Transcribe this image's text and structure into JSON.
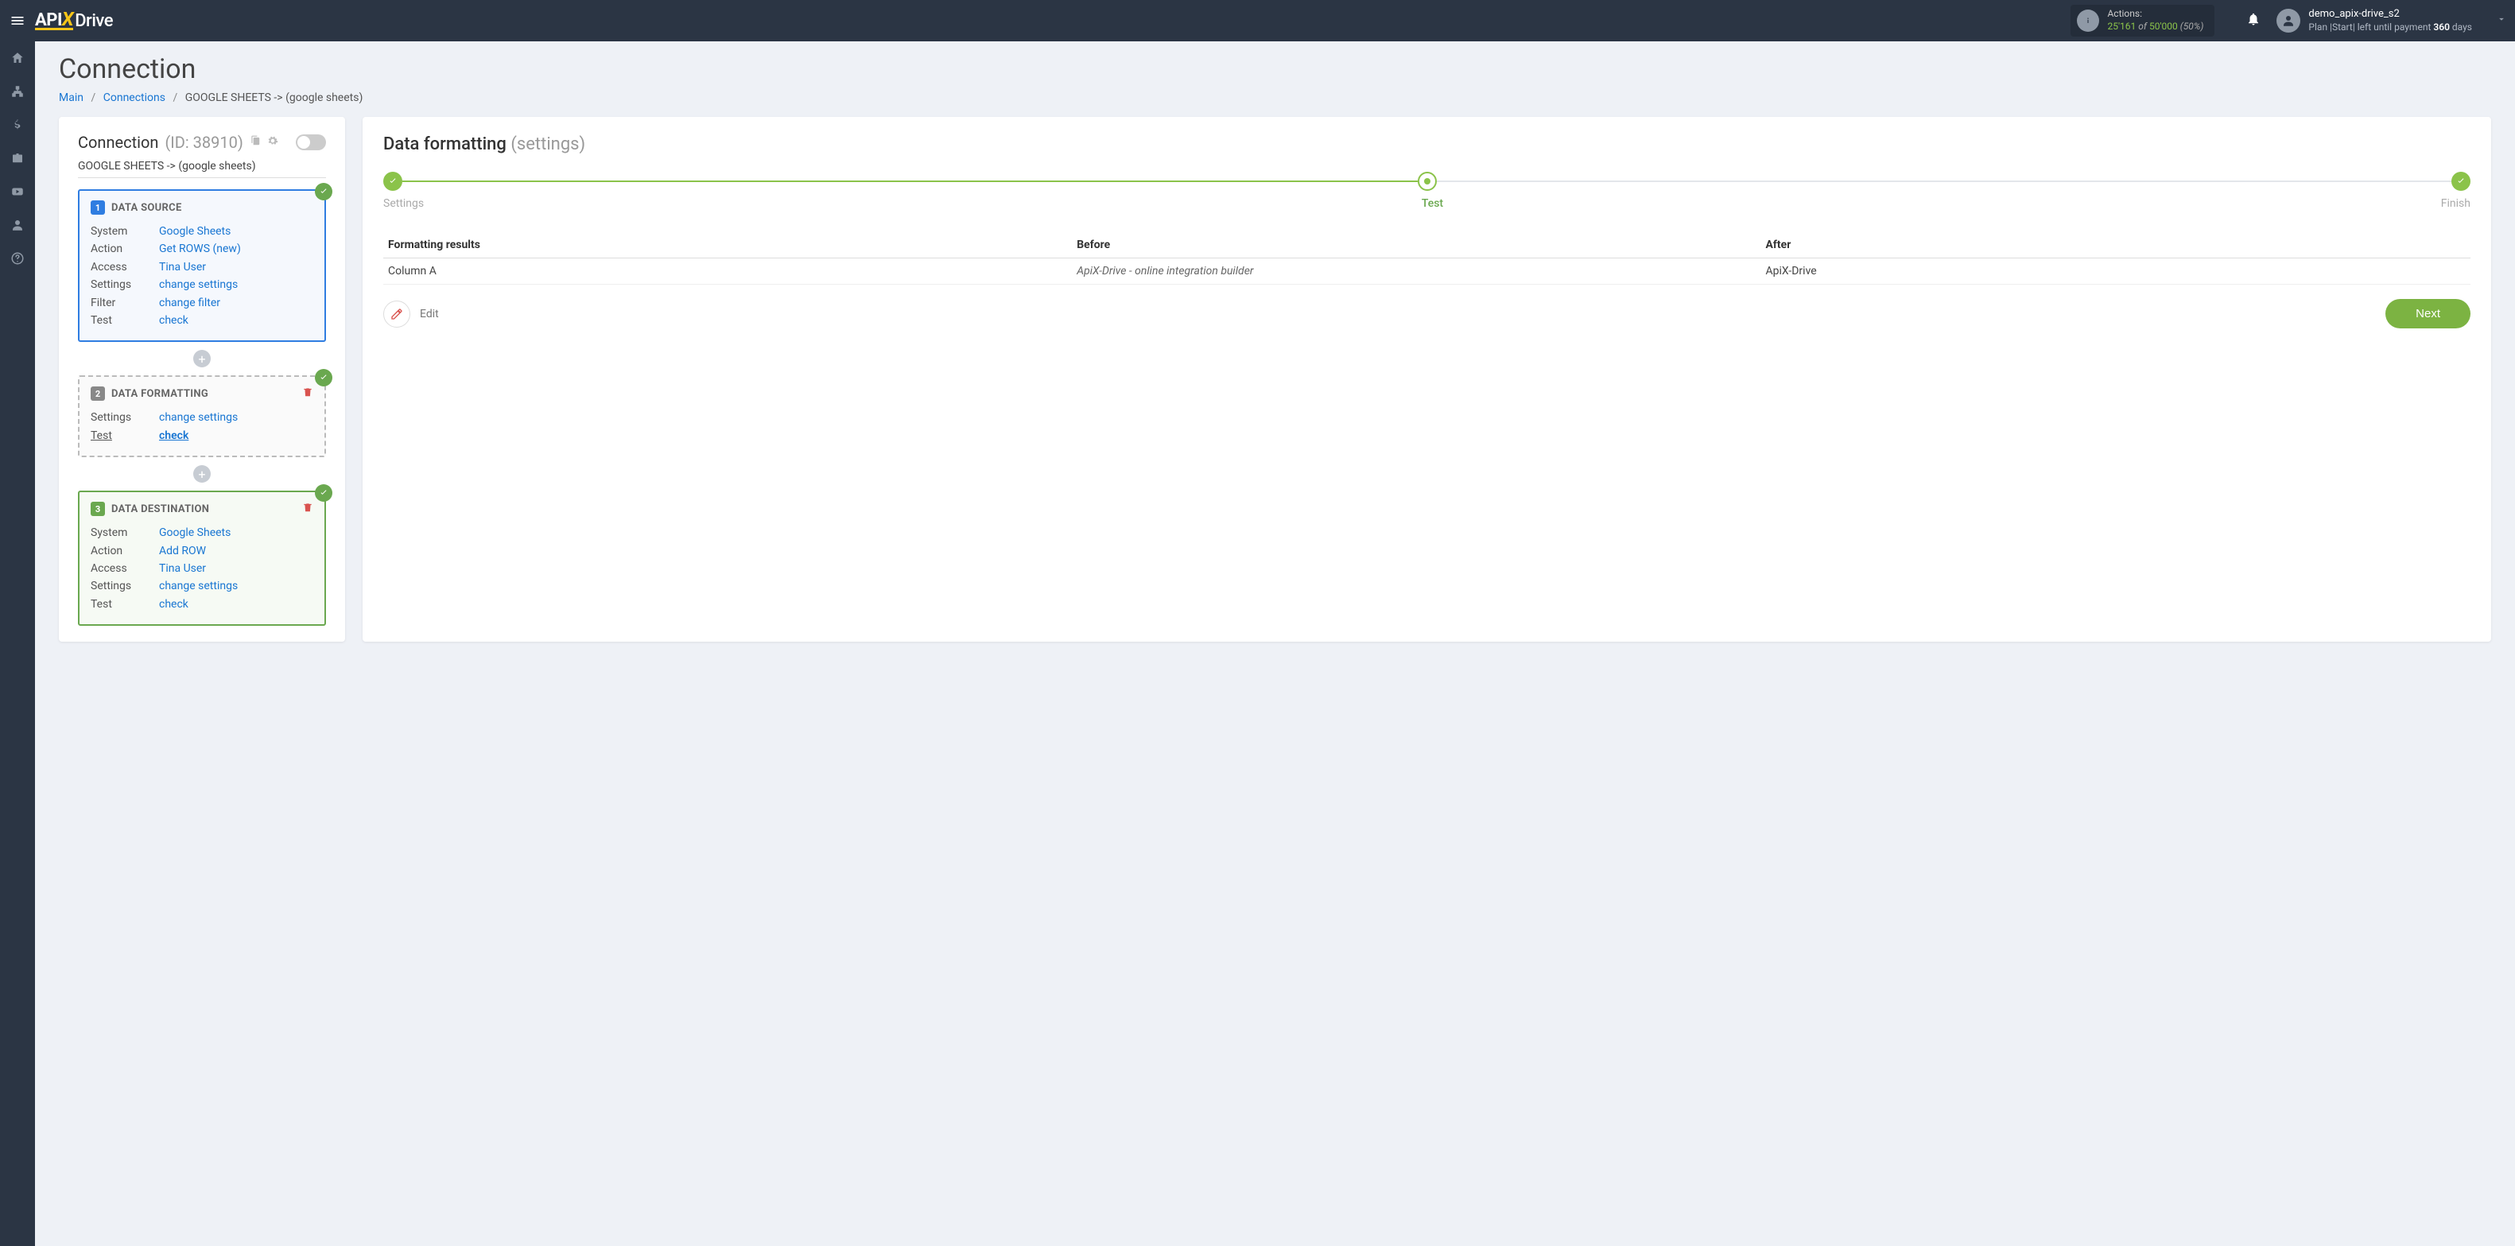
{
  "topbar": {
    "logo_api": "API",
    "logo_x": "X",
    "logo_drive": "Drive",
    "actions_label": "Actions:",
    "actions_used": "25'161",
    "actions_of": "of",
    "actions_total": "50'000",
    "actions_pct": "(50%)",
    "username": "demo_apix-drive_s2",
    "plan_prefix": "Plan |Start| left until payment ",
    "plan_days": "360",
    "plan_suffix": " days"
  },
  "page": {
    "title": "Connection",
    "bc_main": "Main",
    "bc_connections": "Connections",
    "bc_current": "GOOGLE SHEETS -> (google sheets)"
  },
  "left_panel": {
    "heading": "Connection",
    "conn_id": "(ID: 38910)",
    "conn_name": "GOOGLE SHEETS -> (google sheets)",
    "source": {
      "num": "1",
      "title": "DATA SOURCE",
      "rows": [
        {
          "k": "System",
          "v": "Google Sheets"
        },
        {
          "k": "Action",
          "v": "Get ROWS (new)"
        },
        {
          "k": "Access",
          "v": "Tina User"
        },
        {
          "k": "Settings",
          "v": "change settings"
        },
        {
          "k": "Filter",
          "v": "change filter"
        },
        {
          "k": "Test",
          "v": "check"
        }
      ]
    },
    "formatting": {
      "num": "2",
      "title": "DATA FORMATTING",
      "rows": [
        {
          "k": "Settings",
          "v": "change settings"
        },
        {
          "k": "Test",
          "v": "check",
          "underline": true
        }
      ]
    },
    "destination": {
      "num": "3",
      "title": "DATA DESTINATION",
      "rows": [
        {
          "k": "System",
          "v": "Google Sheets"
        },
        {
          "k": "Action",
          "v": "Add ROW"
        },
        {
          "k": "Access",
          "v": "Tina User"
        },
        {
          "k": "Settings",
          "v": "change settings"
        },
        {
          "k": "Test",
          "v": "check"
        }
      ]
    }
  },
  "right_panel": {
    "title": "Data formatting",
    "title_sub": "(settings)",
    "steps": {
      "settings": "Settings",
      "test": "Test",
      "finish": "Finish"
    },
    "table": {
      "col_results": "Formatting results",
      "col_before": "Before",
      "col_after": "After",
      "rows": [
        {
          "results": "Column A",
          "before": "ApiX-Drive - online integration builder",
          "after": "ApiX-Drive"
        }
      ]
    },
    "edit_label": "Edit",
    "next_label": "Next"
  }
}
